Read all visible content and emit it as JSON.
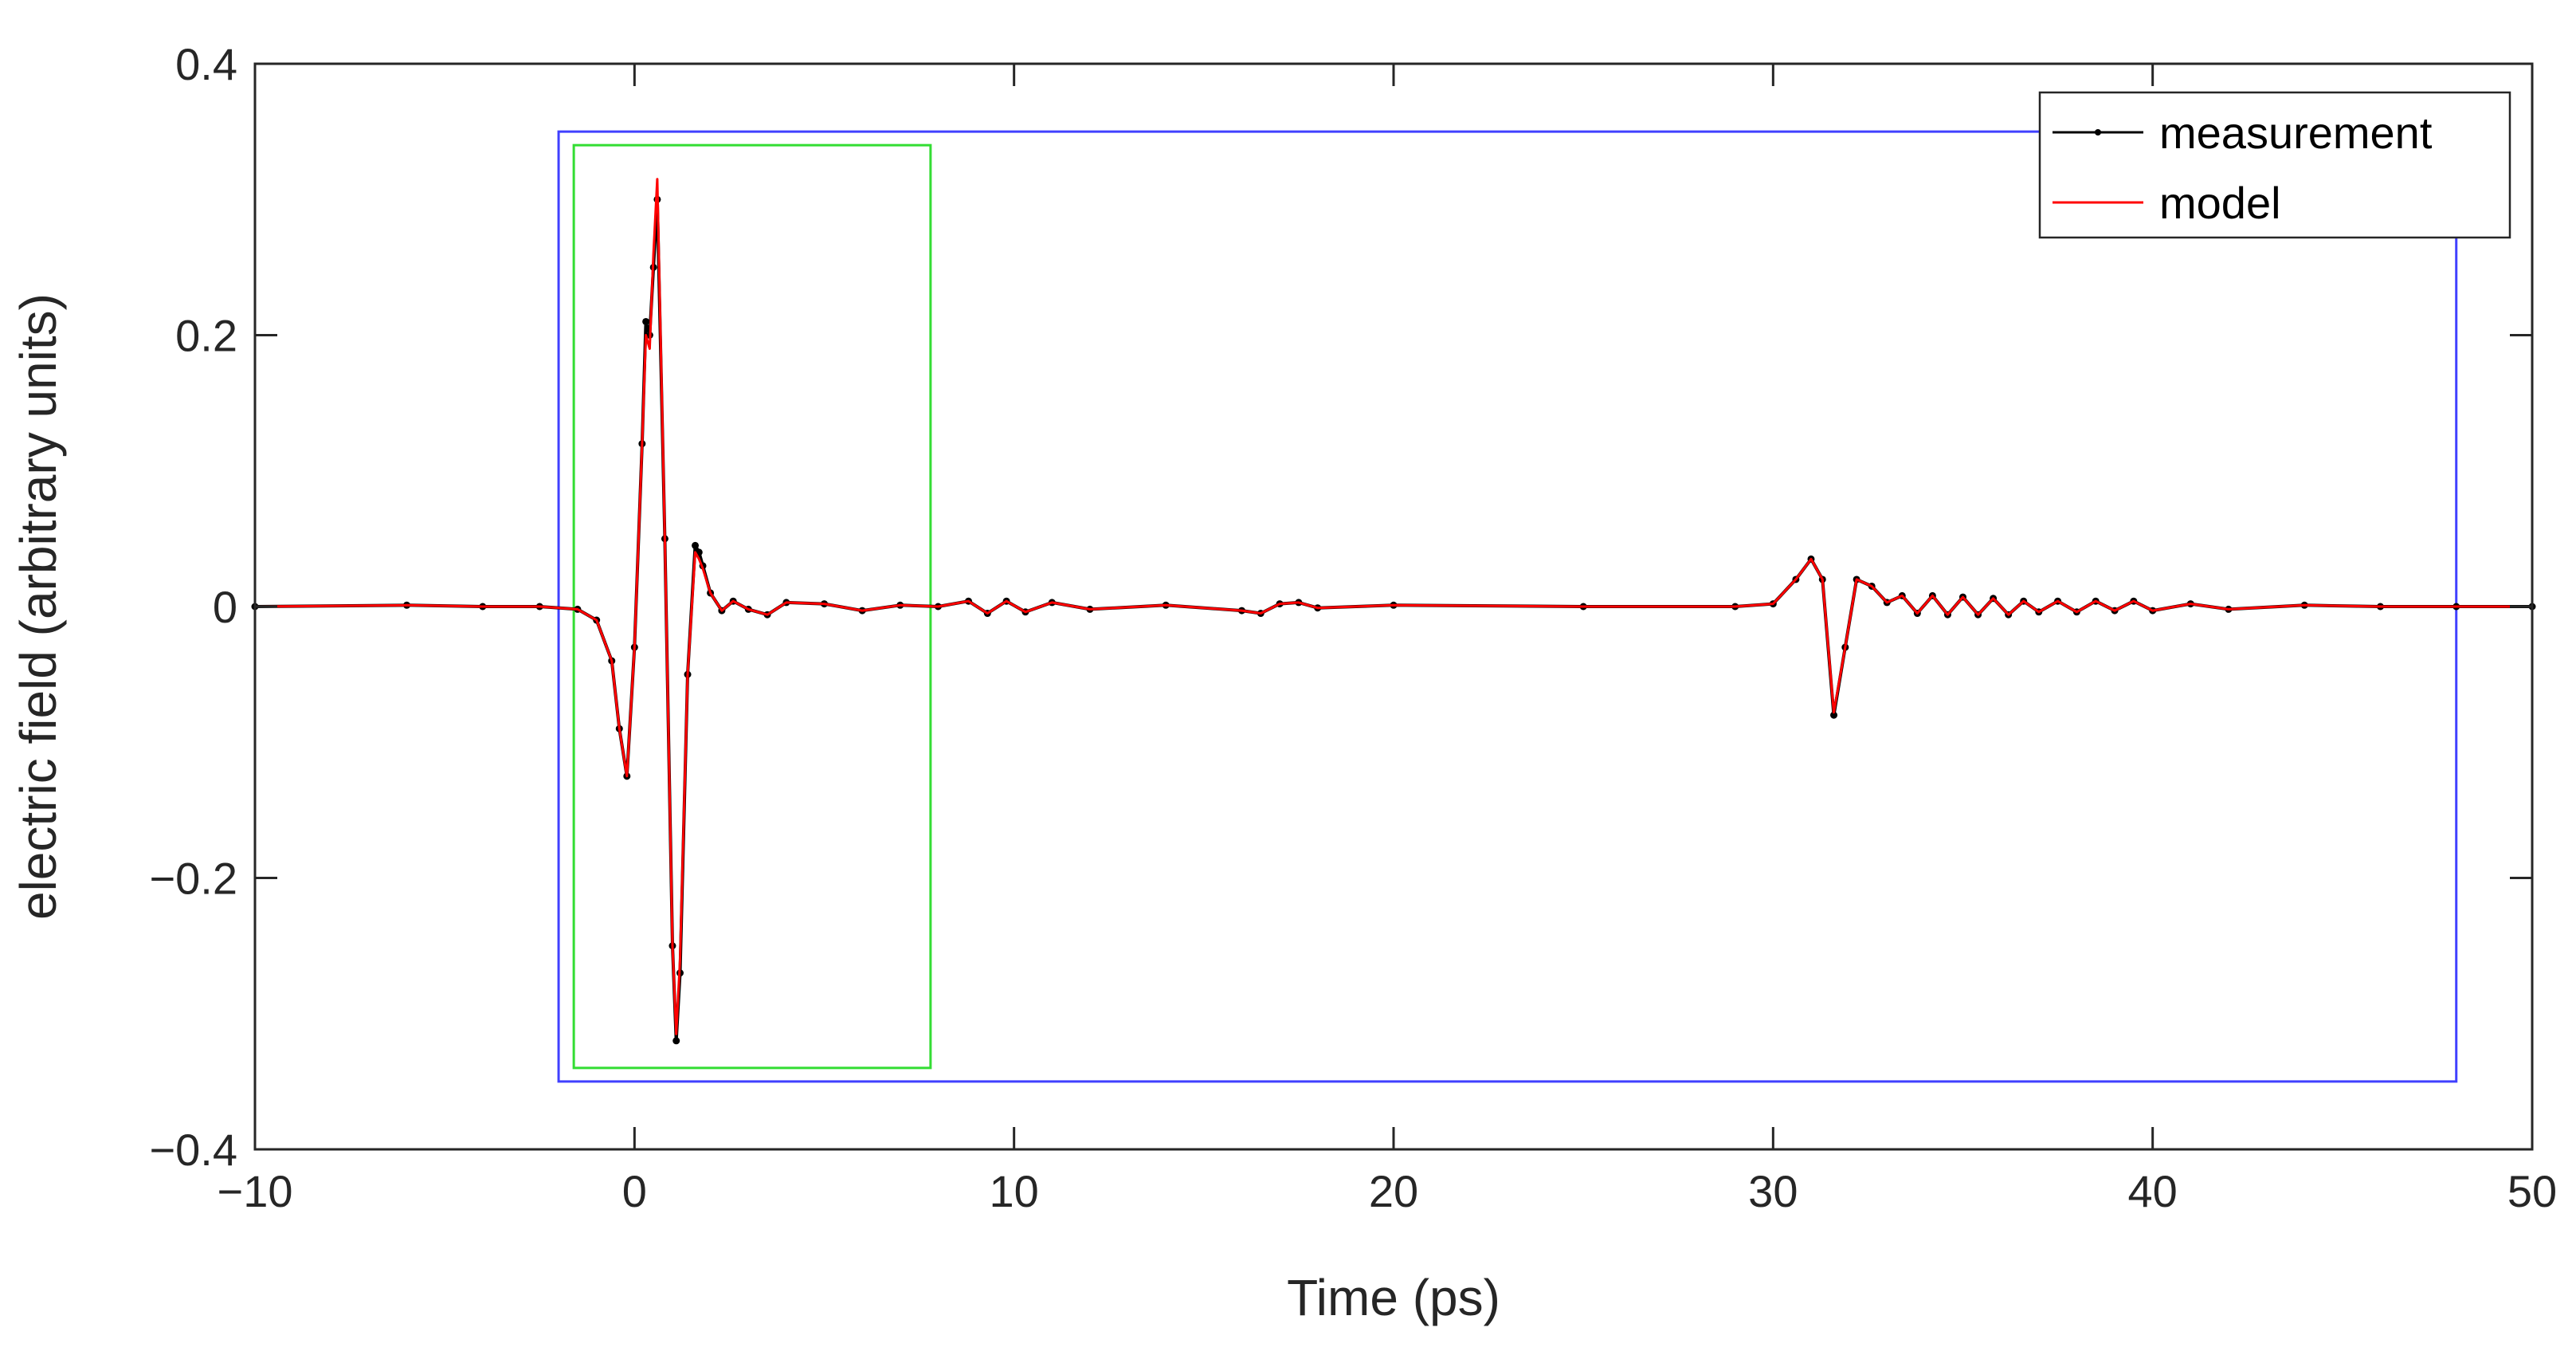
{
  "chart_data": {
    "type": "line",
    "title": "",
    "xlabel": "Time (ps)",
    "ylabel": "electric field (arbitrary units)",
    "xlim": [
      -10,
      50
    ],
    "ylim": [
      -0.4,
      0.4
    ],
    "x_ticks": [
      -10,
      0,
      10,
      20,
      30,
      40,
      50
    ],
    "x_tick_labels": [
      "−10",
      "0",
      "10",
      "20",
      "30",
      "40",
      "50"
    ],
    "y_ticks": [
      -0.4,
      -0.2,
      0,
      0.2,
      0.4
    ],
    "y_tick_labels": [
      "−0.4",
      "−0.2",
      "0",
      "0.2",
      "0.4"
    ],
    "grid": false,
    "legend_position": "top-right",
    "series": [
      {
        "name": "measurement",
        "color": "#000000",
        "marker": "dot",
        "x": [
          -10,
          -6,
          -4,
          -2.5,
          -1.5,
          -1,
          -0.6,
          -0.4,
          -0.2,
          0,
          0.2,
          0.3,
          0.4,
          0.5,
          0.6,
          0.8,
          1.0,
          1.1,
          1.2,
          1.4,
          1.6,
          1.7,
          1.8,
          2.0,
          2.3,
          2.6,
          3.0,
          3.5,
          4.0,
          5.0,
          6.0,
          7.0,
          8.0,
          8.8,
          9.3,
          9.8,
          10.3,
          11,
          12,
          14,
          16,
          16.5,
          17,
          17.5,
          18,
          20,
          25,
          29,
          30,
          30.6,
          31.0,
          31.3,
          31.6,
          31.9,
          32.2,
          32.6,
          33.0,
          33.4,
          33.8,
          34.2,
          34.6,
          35,
          35.4,
          35.8,
          36.2,
          36.6,
          37,
          37.5,
          38,
          38.5,
          39,
          39.5,
          40,
          41,
          42,
          44,
          46,
          48,
          50
        ],
        "y": [
          0,
          0.001,
          0,
          0,
          -0.002,
          -0.01,
          -0.04,
          -0.09,
          -0.125,
          -0.03,
          0.12,
          0.21,
          0.2,
          0.25,
          0.3,
          0.05,
          -0.25,
          -0.32,
          -0.27,
          -0.05,
          0.045,
          0.04,
          0.03,
          0.01,
          -0.003,
          0.004,
          -0.002,
          -0.006,
          0.003,
          0.002,
          -0.003,
          0.001,
          0,
          0.004,
          -0.005,
          0.004,
          -0.004,
          0.003,
          -0.002,
          0.001,
          -0.003,
          -0.005,
          0.002,
          0.003,
          -0.001,
          0.001,
          0,
          0,
          0.002,
          0.02,
          0.035,
          0.02,
          -0.08,
          -0.03,
          0.02,
          0.015,
          0.003,
          0.008,
          -0.005,
          0.008,
          -0.006,
          0.007,
          -0.006,
          0.006,
          -0.006,
          0.004,
          -0.004,
          0.004,
          -0.004,
          0.004,
          -0.003,
          0.004,
          -0.003,
          0.002,
          -0.002,
          0.001,
          0,
          0,
          0
        ]
      },
      {
        "name": "model",
        "color": "#ff0000",
        "marker": "none",
        "x": [
          -10,
          -6,
          -4,
          -2.5,
          -1.5,
          -1,
          -0.6,
          -0.4,
          -0.2,
          0,
          0.2,
          0.3,
          0.4,
          0.5,
          0.6,
          0.8,
          1.0,
          1.1,
          1.2,
          1.4,
          1.6,
          1.7,
          1.8,
          2.0,
          2.3,
          2.6,
          3.0,
          3.5,
          4.0,
          5.0,
          6.0,
          7.0,
          8.0,
          8.8,
          9.3,
          9.8,
          10.3,
          11,
          12,
          14,
          16,
          16.5,
          17,
          17.5,
          18,
          20,
          25,
          29,
          30,
          30.6,
          31.0,
          31.3,
          31.6,
          31.9,
          32.2,
          32.6,
          33.0,
          33.4,
          33.8,
          34.2,
          34.6,
          35,
          35.4,
          35.8,
          36.2,
          36.6,
          37,
          37.5,
          38,
          38.5,
          39,
          39.5,
          40,
          41,
          42,
          44,
          46,
          48,
          50
        ],
        "y": [
          0,
          0.001,
          0,
          0,
          -0.002,
          -0.01,
          -0.04,
          -0.09,
          -0.125,
          -0.03,
          0.12,
          0.2,
          0.19,
          0.26,
          0.315,
          0.05,
          -0.25,
          -0.315,
          -0.26,
          -0.05,
          0.04,
          0.035,
          0.028,
          0.01,
          -0.003,
          0.004,
          -0.002,
          -0.006,
          0.003,
          0.002,
          -0.003,
          0.001,
          0,
          0.004,
          -0.005,
          0.004,
          -0.004,
          0.003,
          -0.002,
          0.001,
          -0.003,
          -0.005,
          0.002,
          0.003,
          -0.001,
          0.001,
          0,
          0,
          0.002,
          0.02,
          0.035,
          0.02,
          -0.078,
          -0.03,
          0.02,
          0.015,
          0.003,
          0.008,
          -0.005,
          0.008,
          -0.006,
          0.007,
          -0.006,
          0.006,
          -0.006,
          0.004,
          -0.004,
          0.004,
          -0.004,
          0.004,
          -0.003,
          0.004,
          -0.003,
          0.002,
          -0.002,
          0.001,
          0,
          0,
          0
        ]
      }
    ],
    "window_boxes": [
      {
        "color": "#4040ff",
        "x": [
          -2,
          48
        ],
        "y": [
          -0.35,
          0.35
        ]
      },
      {
        "color": "#33dd33",
        "x": [
          -1.6,
          7.8
        ],
        "y": [
          -0.34,
          0.34
        ]
      }
    ],
    "legend": [
      {
        "label": "measurement",
        "color": "#000000"
      },
      {
        "label": "model",
        "color": "#ff0000"
      }
    ]
  }
}
